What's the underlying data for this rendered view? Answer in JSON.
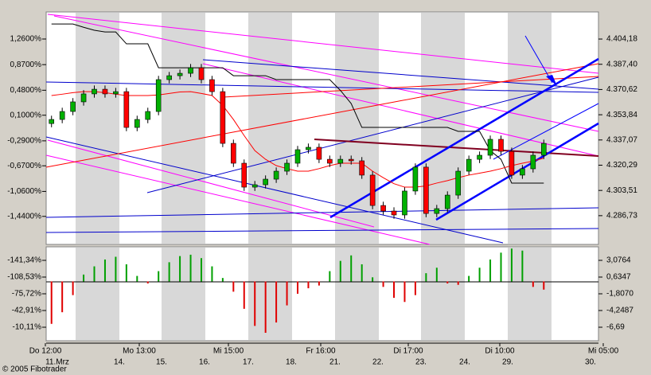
{
  "chart_data": [
    {
      "type": "candlestick",
      "up_color": "#00b000",
      "down_color": "#ff0000",
      "open": [
        4348.0,
        4350.7,
        4356.0,
        4362.4,
        4367.7,
        4370.8,
        4367.7,
        4369.2,
        4345.4,
        4350.7,
        4356.0,
        4377.2,
        4379.8,
        4381.4,
        4385.1,
        4377.2,
        4369.2,
        4334.8,
        4321.6,
        4305.7,
        4307.3,
        4311.0,
        4316.3,
        4321.6,
        4330.6,
        4332.2,
        4324.2,
        4321.6,
        4324.2,
        4323.2,
        4313.7,
        4293.5,
        4289.8,
        4287.2,
        4303.1,
        4319.0,
        4288.2,
        4291.4,
        4300.4,
        4316.3,
        4324.2,
        4326.9,
        4337.5,
        4329.5,
        4313.7,
        4317.9,
        4326.9
      ],
      "high": [
        4353.2,
        4358.5,
        4364.9,
        4370.2,
        4373.3,
        4373.3,
        4371.7,
        4371.7,
        4353.2,
        4358.5,
        4379.7,
        4382.3,
        4383.9,
        4387.6,
        4387.6,
        4379.7,
        4371.7,
        4337.3,
        4324.1,
        4309.8,
        4313.5,
        4318.8,
        4324.1,
        4333.1,
        4334.7,
        4334.7,
        4326.7,
        4326.7,
        4326.7,
        4325.7,
        4316.2,
        4296.0,
        4292.3,
        4305.6,
        4321.5,
        4321.5,
        4293.9,
        4302.9,
        4318.8,
        4326.7,
        4329.4,
        4340.0,
        4340.0,
        4332.0,
        4320.4,
        4329.4,
        4337.3
      ],
      "low": [
        4345.5,
        4348.2,
        4353.5,
        4359.9,
        4365.2,
        4365.2,
        4365.2,
        4342.9,
        4342.9,
        4348.2,
        4353.5,
        4374.7,
        4377.3,
        4378.9,
        4374.7,
        4366.7,
        4332.3,
        4319.1,
        4303.2,
        4303.2,
        4304.8,
        4308.5,
        4313.8,
        4319.1,
        4328.1,
        4321.7,
        4319.1,
        4319.1,
        4320.7,
        4311.2,
        4291.0,
        4287.3,
        4284.7,
        4284.7,
        4300.6,
        4285.7,
        4285.7,
        4288.9,
        4297.9,
        4313.8,
        4321.7,
        4324.4,
        4327.0,
        4311.2,
        4311.2,
        4315.4,
        4324.4
      ],
      "close": [
        4350.7,
        4356.0,
        4362.4,
        4367.7,
        4370.8,
        4367.7,
        4369.2,
        4345.4,
        4350.7,
        4356.0,
        4377.2,
        4379.8,
        4381.4,
        4385.1,
        4377.2,
        4369.2,
        4334.8,
        4321.6,
        4305.7,
        4307.3,
        4311.0,
        4316.3,
        4321.6,
        4330.6,
        4332.2,
        4324.2,
        4321.6,
        4324.2,
        4323.2,
        4313.7,
        4293.5,
        4289.8,
        4287.2,
        4303.1,
        4319.0,
        4288.2,
        4291.4,
        4300.4,
        4316.3,
        4324.2,
        4326.9,
        4337.5,
        4329.5,
        4313.7,
        4317.9,
        4326.9,
        4334.8
      ],
      "series": [
        {
          "color": "#000000",
          "values": [
            4414.2,
            4414.2,
            4414.2,
            4412.0,
            4410.0,
            4408.9,
            4408.9,
            4401.0,
            4401.0,
            4401.0,
            4385.1,
            4385.1,
            4385.1,
            4385.1,
            4385.1,
            4385.1,
            4385.1,
            4379.8,
            4379.8,
            4379.8,
            4379.8,
            4377.2,
            4377.2,
            4377.2,
            4377.2,
            4377.2,
            4377.2,
            4370.0,
            4361.3,
            4345.4,
            4345.4,
            4345.4,
            4345.4,
            4345.4,
            4345.4,
            4345.4,
            4345.4,
            4345.4,
            4342.8,
            4342.8,
            4342.8,
            4330.0,
            4324.2,
            4308.4,
            4308.4,
            4308.4,
            4308.4
          ]
        },
        {
          "color": "#ff0000",
          "values": [
            4366.6,
            4367.5,
            4368.5,
            4369.2,
            4369.2,
            4368.5,
            4367.5,
            4366.6,
            4366.6,
            4366.6,
            4367.0,
            4368.0,
            4369.0,
            4369.2,
            4368.0,
            4366.6,
            4360.0,
            4350.7,
            4340.0,
            4330.0,
            4324.2,
            4320.0,
            4318.0,
            4316.3,
            4316.3,
            4318.0,
            4320.0,
            4321.6,
            4321.6,
            4321.6,
            4316.3,
            4312.0,
            4308.0,
            4305.7,
            4305.7,
            4306.5,
            4308.4,
            4310.0,
            4312.0,
            4313.7,
            4315.0,
            4316.3,
            4318.0,
            4320.0,
            4321.6,
            4323.0,
            4325.0
          ]
        }
      ],
      "ylim": [
        4267.6,
        4422.2
      ],
      "yticks": [
        {
          "value": 4404.18,
          "label": "4.404,18"
        },
        {
          "value": 4387.4,
          "label": "4.387,40"
        },
        {
          "value": 4370.62,
          "label": "4.370,62"
        },
        {
          "value": 4353.84,
          "label": "4.353,84"
        },
        {
          "value": 4337.07,
          "label": "4.337,07"
        },
        {
          "value": 4320.29,
          "label": "4.320,29"
        },
        {
          "value": 4303.51,
          "label": "4.303,51"
        },
        {
          "value": 4286.73,
          "label": "4.286,73"
        }
      ],
      "y2lim": [
        -1.867,
        1.672
      ],
      "y2ticks": [
        {
          "value": 1.26,
          "label": "1,2600%"
        },
        {
          "value": 0.87,
          "label": "0,8700%"
        },
        {
          "value": 0.48,
          "label": "0,4800%"
        },
        {
          "value": 0.1,
          "label": "0,1000%"
        },
        {
          "value": -0.29,
          "label": "-0,2900%"
        },
        {
          "value": -0.67,
          "label": "-0,6700%"
        },
        {
          "value": -1.06,
          "label": "-1,0600%"
        },
        {
          "value": -1.44,
          "label": "-1,4400%"
        }
      ]
    },
    {
      "type": "histogram",
      "positive_color": "#00a000",
      "negative_color": "#e00000",
      "values": [
        -6.2,
        -4.5,
        -2.0,
        1.0,
        2.2,
        3.2,
        3.6,
        2.5,
        0.8,
        -0.3,
        1.5,
        2.8,
        3.7,
        3.9,
        3.4,
        2.2,
        0.5,
        -1.5,
        -4.0,
        -6.5,
        -7.5,
        -6.0,
        -3.5,
        -1.8,
        -1.0,
        -0.6,
        1.5,
        3.0,
        3.8,
        2.5,
        0.6,
        -0.8,
        -2.4,
        -3.0,
        -2.0,
        1.2,
        2.0,
        -0.3,
        -0.5,
        0.8,
        2.0,
        3.2,
        4.2,
        4.8,
        4.5,
        -0.8,
        -1.2
      ],
      "ylim": [
        -8.667,
        5.053
      ],
      "yticks": [
        {
          "value": 3.0764,
          "label": "3,0764"
        },
        {
          "value": 0.6347,
          "label": "0,6347"
        },
        {
          "value": -1.807,
          "label": "-1,8070"
        },
        {
          "value": -4.2487,
          "label": "-4,2487"
        },
        {
          "value": -6.69,
          "label": "-6,69"
        }
      ],
      "y2lim": [
        16.45,
        -167.9
      ],
      "y2ticks": [
        {
          "value": -141.34,
          "label": "-141,34%"
        },
        {
          "value": -108.53,
          "label": "-108,53%"
        },
        {
          "value": -75.72,
          "label": "-75,72%"
        },
        {
          "value": -42.91,
          "label": "-42,91%"
        },
        {
          "value": -10.11,
          "label": "-10,11%"
        }
      ]
    }
  ],
  "x_axis": {
    "times": [
      "Do 12:00",
      "Mo 13:00",
      "Mi 15:00",
      "Fr 16:00",
      "Di 17:00",
      "Di 10:00",
      "Mi 05:00"
    ],
    "dates": [
      "11.Mrz",
      "14.",
      "15.",
      "16.",
      "17.",
      "18.",
      "21.",
      "22.",
      "23.",
      "24.",
      "29.",
      "30."
    ]
  },
  "footer": "© 2005 Fibotrader"
}
